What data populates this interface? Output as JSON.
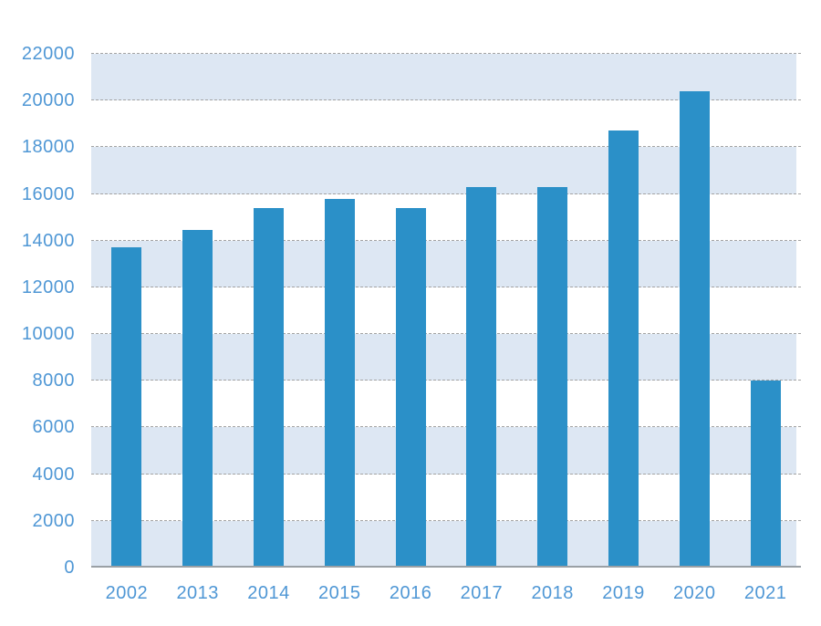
{
  "chart_data": {
    "type": "bar",
    "title": "",
    "xlabel": "",
    "ylabel": "",
    "categories": [
      "2002",
      "2013",
      "2014",
      "2015",
      "2016",
      "2017",
      "2018",
      "2019",
      "2020",
      "2021"
    ],
    "values": [
      13700,
      14450,
      15400,
      15800,
      15400,
      16300,
      16300,
      18700,
      20400,
      8000
    ],
    "ylim": [
      0,
      22000
    ],
    "ytick_step": 2000,
    "yticks": [
      "0",
      "2000",
      "4000",
      "6000",
      "8000",
      "10000",
      "12000",
      "14000",
      "16000",
      "18000",
      "20000",
      "22000"
    ],
    "grid": "horizontal-dashed",
    "bands": "alternating-light-blue-from-zero",
    "legend_position": "none",
    "colors": {
      "bar": "#2b90c8",
      "band": "#dde7f3",
      "gridline": "#a3a3a3",
      "axis_line": "#9aa0a5",
      "tick_label": "#4f97d5",
      "background": "#ffffff"
    }
  }
}
